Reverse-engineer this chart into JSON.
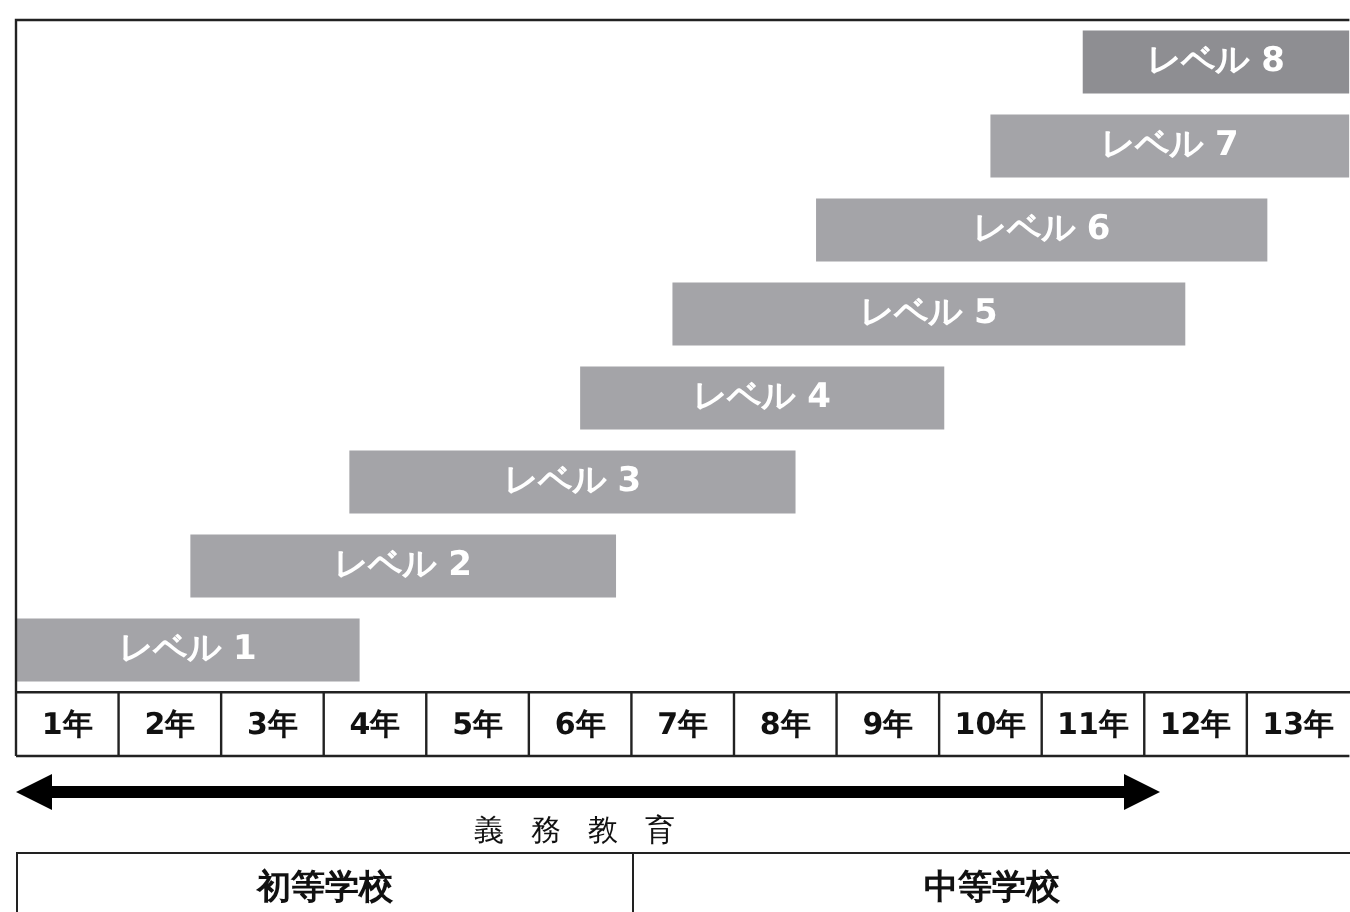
{
  "chart_data": {
    "type": "bar",
    "orientation": "horizontal",
    "categories": [
      "レベル 8",
      "レベル 7",
      "レベル 6",
      "レベル 5",
      "レベル 4",
      "レベル 3",
      "レベル 2",
      "レベル 1"
    ],
    "base": [
      10.4,
      9.5,
      7.8,
      6.4,
      5.5,
      3.25,
      1.7,
      0
    ],
    "values": [
      2.6,
      3.5,
      4.4,
      5,
      3.55,
      4.35,
      4.15,
      3.35
    ],
    "colors": [
      "#8e8e92",
      "#a4a4a8",
      "#a4a4a8",
      "#a4a4a8",
      "#a4a4a8",
      "#a4a4a8",
      "#a4a4a8",
      "#a4a4a8"
    ],
    "xlim": [
      0,
      13
    ],
    "xticks": [
      {
        "value": 0.5,
        "label": "1年"
      },
      {
        "value": 1.5,
        "label": "2年"
      },
      {
        "value": 2.5,
        "label": "3年"
      },
      {
        "value": 3.5,
        "label": "4年"
      },
      {
        "value": 4.5,
        "label": "5年"
      },
      {
        "value": 5.5,
        "label": "6年"
      },
      {
        "value": 6.5,
        "label": "7年"
      },
      {
        "value": 7.5,
        "label": "8年"
      },
      {
        "value": 8.5,
        "label": "9年"
      },
      {
        "value": 9.5,
        "label": "10年"
      },
      {
        "value": 10.5,
        "label": "11年"
      },
      {
        "value": 11.5,
        "label": "12年"
      },
      {
        "value": 12.5,
        "label": "13年"
      }
    ],
    "annotations": [
      "義務教育",
      "初等学校",
      "中等学校"
    ]
  }
}
